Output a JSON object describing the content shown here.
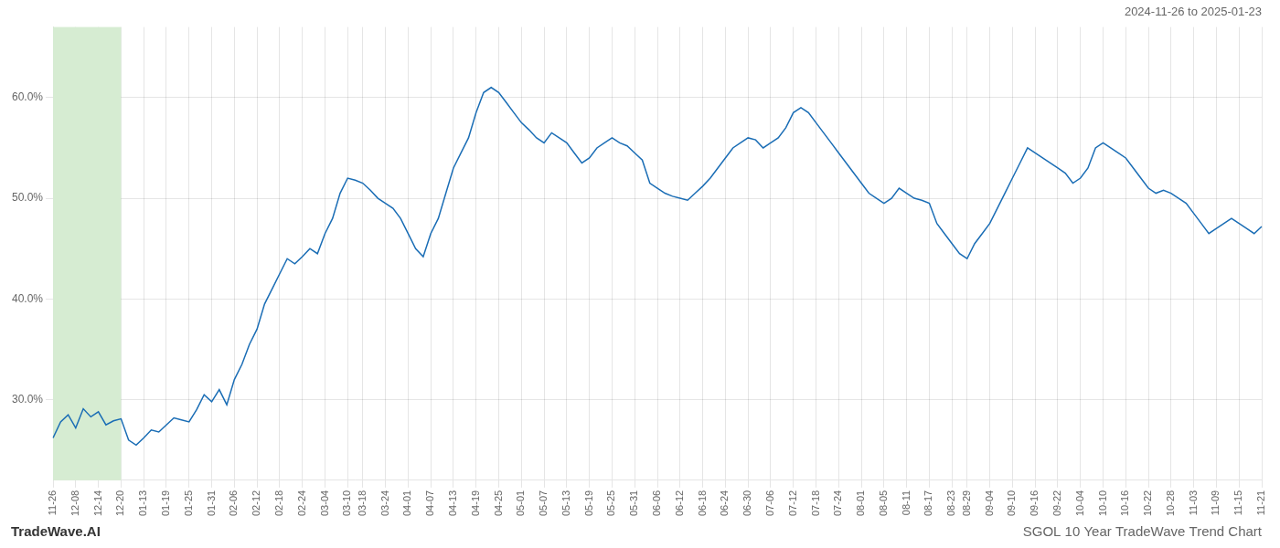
{
  "chart_data": {
    "type": "line",
    "title": "SGOL 10 Year TradeWave Trend Chart",
    "subtitle": "2024-11-26 to 2025-01-23",
    "annotations": [
      "TradeWave.AI"
    ],
    "categories": [
      "11-26",
      null,
      null,
      "12-08",
      null,
      null,
      "12-14",
      null,
      null,
      "12-20",
      null,
      null,
      "01-13",
      null,
      null,
      "01-19",
      null,
      null,
      "01-25",
      null,
      null,
      "01-31",
      null,
      null,
      "02-06",
      null,
      null,
      "02-12",
      null,
      null,
      "02-18",
      null,
      null,
      "02-24",
      null,
      null,
      "03-04",
      null,
      null,
      "03-10",
      null,
      "03-18",
      null,
      null,
      "03-24",
      null,
      null,
      "04-01",
      null,
      null,
      "04-07",
      null,
      null,
      "04-13",
      null,
      null,
      "04-19",
      null,
      null,
      "04-25",
      null,
      null,
      "05-01",
      null,
      null,
      "05-07",
      null,
      null,
      "05-13",
      null,
      null,
      "05-19",
      null,
      null,
      "05-25",
      null,
      null,
      "05-31",
      null,
      null,
      "06-06",
      null,
      null,
      "06-12",
      null,
      null,
      "06-18",
      null,
      null,
      "06-24",
      null,
      null,
      "06-30",
      null,
      null,
      "07-06",
      null,
      null,
      "07-12",
      null,
      null,
      "07-18",
      null,
      null,
      "07-24",
      null,
      null,
      "08-01",
      null,
      null,
      "08-05",
      null,
      null,
      "08-11",
      null,
      null,
      "08-17",
      null,
      null,
      "08-23",
      null,
      "08-29",
      null,
      null,
      "09-04",
      null,
      null,
      "09-10",
      null,
      null,
      "09-16",
      null,
      null,
      "09-22",
      null,
      null,
      "10-04",
      null,
      null,
      "10-10",
      null,
      null,
      "10-16",
      null,
      null,
      "10-22",
      null,
      null,
      "10-28",
      null,
      null,
      "11-03",
      null,
      null,
      "11-09",
      null,
      null,
      "11-15",
      null,
      null,
      "11-21"
    ],
    "values": [
      26.2,
      27.8,
      28.5,
      27.2,
      29.1,
      28.3,
      28.8,
      27.5,
      27.9,
      28.1,
      26.0,
      25.5,
      26.2,
      27.0,
      26.8,
      27.5,
      28.2,
      28.0,
      27.8,
      29.0,
      30.5,
      29.8,
      31.0,
      29.5,
      32.0,
      33.5,
      35.5,
      37.0,
      39.5,
      41.0,
      42.5,
      44.0,
      43.5,
      44.2,
      45.0,
      44.5,
      46.5,
      48.0,
      50.5,
      52.0,
      51.8,
      51.5,
      50.8,
      50.0,
      49.5,
      49.0,
      48.0,
      46.5,
      45.0,
      44.2,
      46.5,
      48.0,
      50.5,
      53.0,
      54.5,
      56.0,
      58.5,
      60.5,
      61.0,
      60.5,
      59.5,
      58.5,
      57.5,
      56.8,
      56.0,
      55.5,
      56.5,
      56.0,
      55.5,
      54.5,
      53.5,
      54.0,
      55.0,
      55.5,
      56.0,
      55.5,
      55.2,
      54.5,
      53.8,
      51.5,
      51.0,
      50.5,
      50.2,
      50.0,
      49.8,
      50.5,
      51.2,
      52.0,
      53.0,
      54.0,
      55.0,
      55.5,
      56.0,
      55.8,
      55.0,
      55.5,
      56.0,
      57.0,
      58.5,
      59.0,
      58.5,
      57.5,
      56.5,
      55.5,
      54.5,
      53.5,
      52.5,
      51.5,
      50.5,
      50.0,
      49.5,
      50.0,
      51.0,
      50.5,
      50.0,
      49.8,
      49.5,
      47.5,
      46.5,
      45.5,
      44.5,
      44.0,
      45.5,
      46.5,
      47.5,
      49.0,
      50.5,
      52.0,
      53.5,
      55.0,
      54.5,
      54.0,
      53.5,
      53.0,
      52.5,
      51.5,
      52.0,
      53.0,
      55.0,
      55.5,
      55.0,
      54.5,
      54.0,
      53.0,
      52.0,
      51.0,
      50.5,
      50.8,
      50.5,
      50.0,
      49.5,
      48.5,
      47.5,
      46.5,
      47.0,
      47.5,
      48.0,
      47.5,
      47.0,
      46.5,
      47.2
    ],
    "color": "#1a6db5",
    "shaded_region": {
      "start": "11-26",
      "end": "12-20",
      "color": "#d6ecd2"
    },
    "ylim": [
      22,
      67
    ],
    "yticks": [
      {
        "value": 30.0,
        "label": "30.0%"
      },
      {
        "value": 40.0,
        "label": "40.0%"
      },
      {
        "value": 50.0,
        "label": "50.0%"
      },
      {
        "value": 60.0,
        "label": "60.0%"
      }
    ],
    "grid": true
  }
}
